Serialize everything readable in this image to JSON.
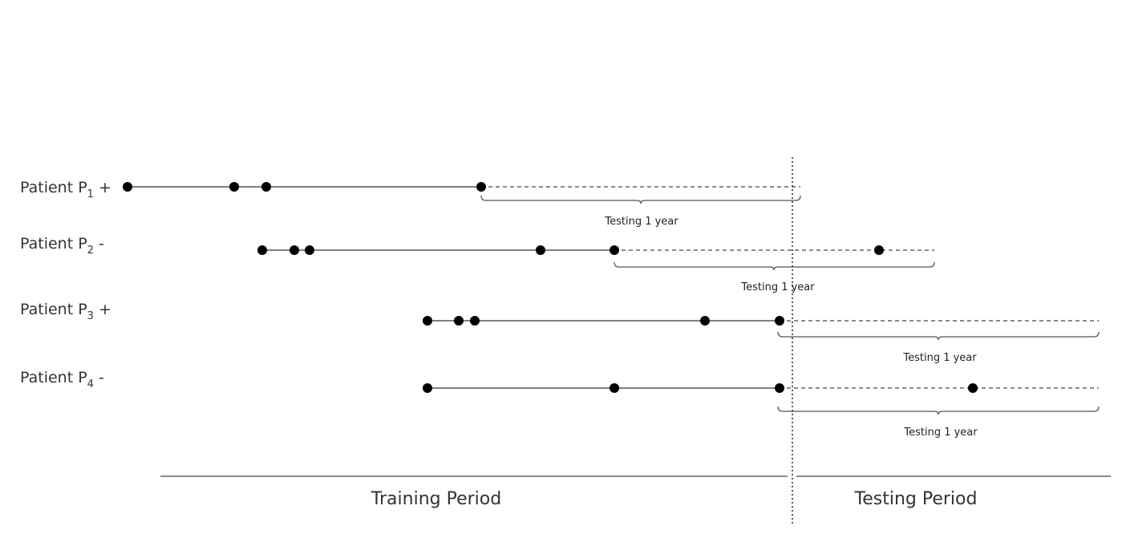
{
  "patients": [
    {
      "name": "Patient P",
      "index": "1",
      "sign": "+"
    },
    {
      "name": "Patient P",
      "index": "2",
      "sign": "-"
    },
    {
      "name": "Patient P",
      "index": "3",
      "sign": "+"
    },
    {
      "name": "Patient P",
      "index": "4",
      "sign": "-"
    }
  ],
  "testing_windows": [
    "Testing 1 year",
    "Testing 1 year",
    "Testing 1 year",
    "Testing 1 year"
  ],
  "periods": {
    "training": "Training Period",
    "testing": "Testing Period"
  }
}
